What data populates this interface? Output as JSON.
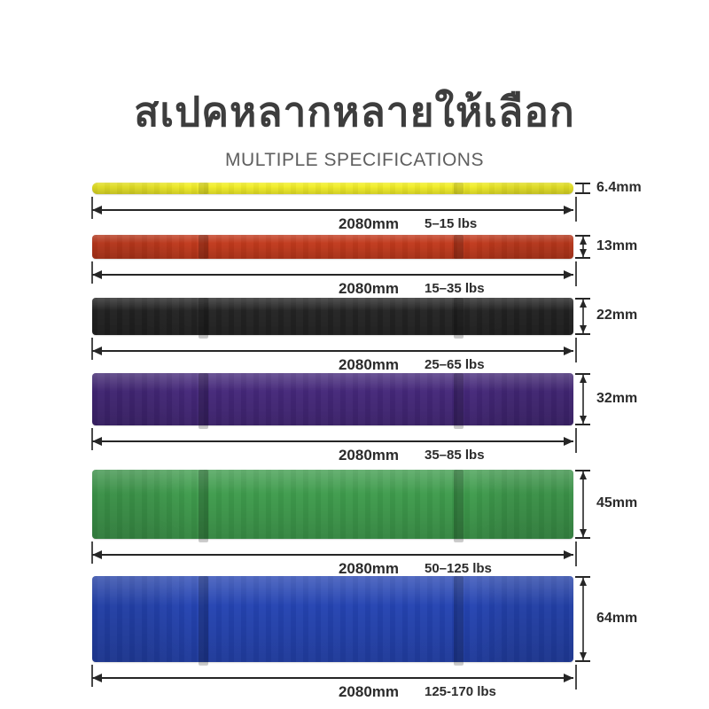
{
  "header": {
    "title_thai": "สเปคหลากหลายให้เลือก",
    "subtitle": "MULTIPLE SPECIFICATIONS"
  },
  "bands": [
    {
      "name": "yellow",
      "color": "#f2ee28",
      "length_label": "2080mm",
      "resistance_label": "5–15 lbs",
      "thickness_label": "6.4mm"
    },
    {
      "name": "red",
      "color": "#c23a1d",
      "length_label": "2080mm",
      "resistance_label": "15–35 lbs",
      "thickness_label": "13mm"
    },
    {
      "name": "black",
      "color": "#242424",
      "length_label": "2080mm",
      "resistance_label": "25–65 lbs",
      "thickness_label": "22mm"
    },
    {
      "name": "purple",
      "color": "#45287a",
      "length_label": "2080mm",
      "resistance_label": "35–85 lbs",
      "thickness_label": "32mm"
    },
    {
      "name": "green",
      "color": "#3f9c4d",
      "length_label": "2080mm",
      "resistance_label": "50–125 lbs",
      "thickness_label": "45mm"
    },
    {
      "name": "blue",
      "color": "#2544b2",
      "length_label": "2080mm",
      "resistance_label": "125-170 lbs",
      "thickness_label": "64mm"
    }
  ],
  "colors": {
    "dimension_line": "#262626",
    "label_text": "#2b2b2b",
    "title_text": "#3d3d3d"
  }
}
